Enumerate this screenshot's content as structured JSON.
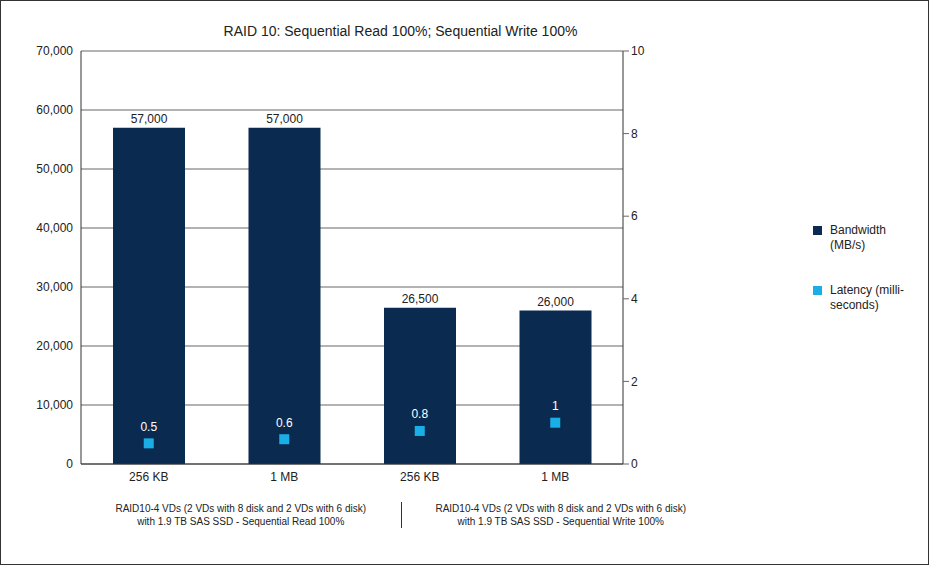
{
  "chart_data": {
    "type": "bar",
    "title": "RAID 10: Sequential Read 100%; Sequential Write 100%",
    "categories": [
      "256 KB",
      "1 MB",
      "256 KB",
      "1 MB"
    ],
    "group_labels": [
      "RAID10-4 VDs (2 VDs with 8 disk and 2 VDs with 6 disk)\nwith 1.9 TB SAS SSD - Sequential Read 100%",
      "RAID10-4 VDs (2 VDs with 8 disk and 2 VDs with 6 disk)\nwith 1.9 TB SAS SSD - Sequential Write 100%"
    ],
    "series": [
      {
        "name": "Bandwidth (MB/s)",
        "type": "bar",
        "color": "#0b2a4f",
        "values": [
          57000,
          57000,
          26500,
          26000
        ],
        "value_labels": [
          "57,000",
          "57,000",
          "26,500",
          "26,000"
        ]
      },
      {
        "name": "Latency (milli-seconds)",
        "type": "scatter",
        "axis": "y2",
        "color": "#1aaee6",
        "marker": "square",
        "values": [
          0.5,
          0.6,
          0.8,
          1
        ]
      }
    ],
    "ylim": [
      0,
      70000
    ],
    "yticks": [
      0,
      {
        "value": 10000,
        "label": "10,000"
      },
      {
        "value": 20000,
        "label": "20,000"
      },
      {
        "value": 30000,
        "label": "30,000"
      },
      {
        "value": 40000,
        "label": "40,000"
      },
      {
        "value": 50000,
        "label": "50,000"
      },
      {
        "value": 60000,
        "label": "60,000"
      },
      {
        "value": 70000,
        "label": "70,000"
      }
    ],
    "y2lim": [
      0,
      10
    ],
    "y2ticks": [
      0,
      2,
      4,
      6,
      8,
      10
    ],
    "grid": true,
    "legend": "right",
    "data_labels": true
  }
}
